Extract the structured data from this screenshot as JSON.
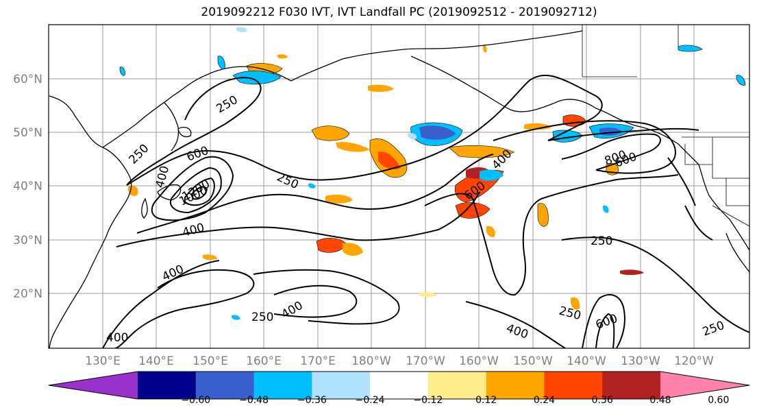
{
  "title": "2019092212 F030 IVT, IVT Landfall PC (2019092512 - 2019092712)",
  "map": {
    "lat_labels": [
      "60°N",
      "50°N",
      "40°N",
      "30°N",
      "20°N"
    ],
    "lon_labels": [
      "130°E",
      "140°E",
      "150°E",
      "160°E",
      "170°E",
      "180°W",
      "170°W",
      "160°W",
      "150°W",
      "140°W",
      "130°W",
      "120°W"
    ],
    "contour_labels": [
      "250",
      "250",
      "400",
      "600",
      "1000",
      "1200",
      "400",
      "250",
      "400",
      "250",
      "400",
      "600",
      "800",
      "600",
      "400",
      "250",
      "250",
      "400",
      "600",
      "250",
      "400"
    ]
  },
  "colorbar": {
    "colors": [
      "#9932cc",
      "#00008b",
      "#3a5fcd",
      "#00bfff",
      "#b0e2ff",
      "#ffffff",
      "#ffec8b",
      "#ffa500",
      "#ff4500",
      "#b22222",
      "#ff82ab"
    ],
    "tick_labels": [
      "−0.60",
      "−0.48",
      "−0.36",
      "−0.24",
      "−0.12",
      "0.12",
      "0.24",
      "0.36",
      "0.48",
      "0.60"
    ]
  }
}
